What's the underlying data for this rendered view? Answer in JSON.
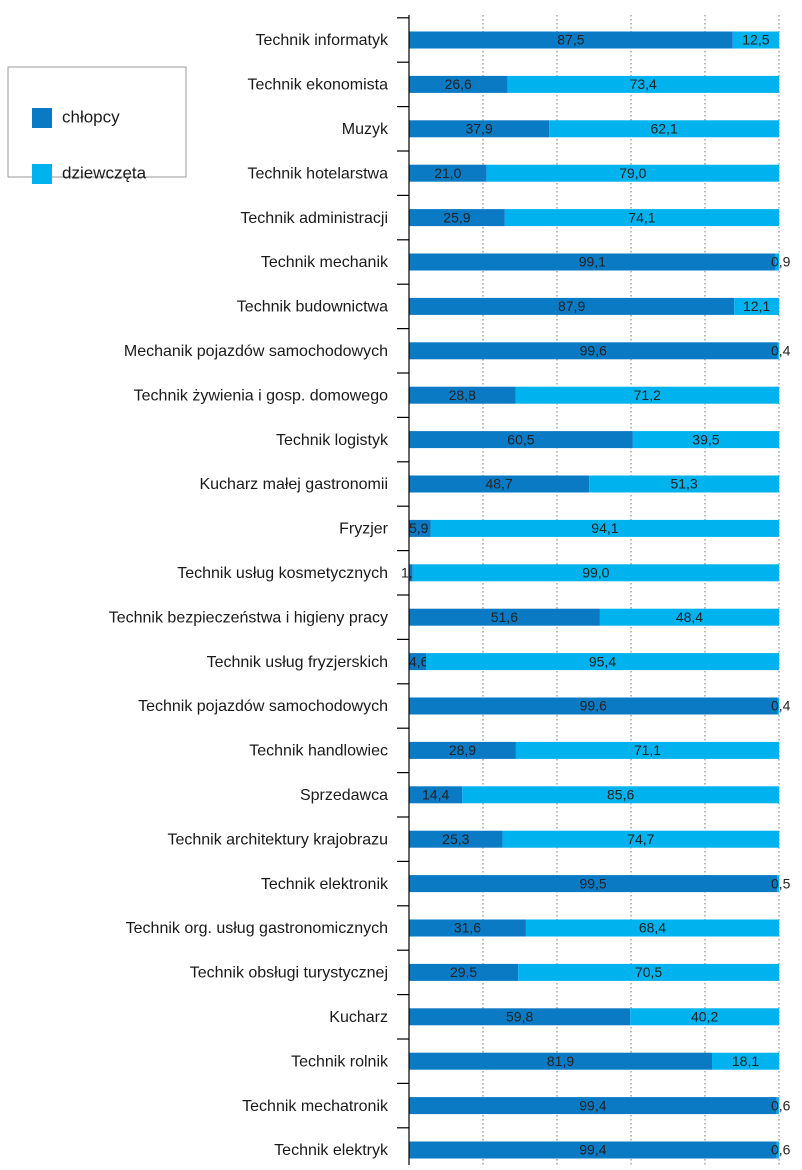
{
  "chart_data": {
    "type": "stacked_bar_horizontal",
    "categories": [
      "Technik informatyk",
      "Technik ekonomista",
      "Muzyk",
      "Technik hotelarstwa",
      "Technik administracji",
      "Technik mechanik",
      "Technik budownictwa",
      "Mechanik pojazdów samochodowych",
      "Technik żywienia i gosp. domowego",
      "Technik logistyk",
      "Kucharz małej gastronomii",
      "Fryzjer",
      "Technik usług kosmetycznych",
      "Technik bezpieczeństwa i higieny pracy",
      "Technik usług fryzjerskich",
      "Technik pojazdów samochodowych",
      "Technik handlowiec",
      "Sprzedawca",
      "Technik architektury krajobrazu",
      "Technik elektronik",
      "Technik org. usług gastronomicznych",
      "Technik obsługi turystycznej",
      "Kucharz",
      "Technik rolnik",
      "Technik mechatronik",
      "Technik elektryk"
    ],
    "series": [
      {
        "name": "chłopcy",
        "color": "#0a7ac4",
        "values": [
          87.5,
          26.6,
          37.9,
          21.0,
          25.9,
          99.1,
          87.9,
          99.6,
          28.8,
          60.5,
          48.7,
          5.9,
          1.0,
          51.6,
          4.6,
          99.6,
          28.9,
          14.4,
          25.3,
          99.5,
          31.6,
          29.5,
          59.8,
          81.9,
          99.4,
          99.4
        ],
        "value_labels": [
          "87,5",
          "26,6",
          "37,9",
          "21,0",
          "25,9",
          "99,1",
          "87,9",
          "99,6",
          "28,8",
          "60,5",
          "48,7",
          "5,9",
          "1,0",
          "51,6",
          "4,6",
          "99,6",
          "28,9",
          "14,4",
          "25,3",
          "99,5",
          "31,6",
          "29,5",
          "59,8",
          "81,9",
          "99,4",
          "99,4"
        ]
      },
      {
        "name": "dziewczęta",
        "color": "#00b2ed",
        "values": [
          12.5,
          73.4,
          62.1,
          79.0,
          74.1,
          0.9,
          12.1,
          0.4,
          71.2,
          39.5,
          51.3,
          94.1,
          99.0,
          48.4,
          95.4,
          0.4,
          71.1,
          85.6,
          74.7,
          0.5,
          68.4,
          70.5,
          40.2,
          18.1,
          0.6,
          0.6
        ],
        "value_labels": [
          "12,5",
          "73,4",
          "62,1",
          "79,0",
          "74,1",
          "0,9",
          "12,1",
          "0,4",
          "71,2",
          "39,5",
          "51,3",
          "94,1",
          "99,0",
          "48,4",
          "95,4",
          "0,4",
          "71,1",
          "85,6",
          "74,7",
          "0,5",
          "68,4",
          "70,5",
          "40,2",
          "18,1",
          "0,6",
          "0,6"
        ]
      }
    ],
    "xlim": [
      0,
      100
    ],
    "xticks": [
      0,
      20,
      40,
      60,
      80,
      100
    ],
    "grid": true,
    "legend": "upper left"
  }
}
